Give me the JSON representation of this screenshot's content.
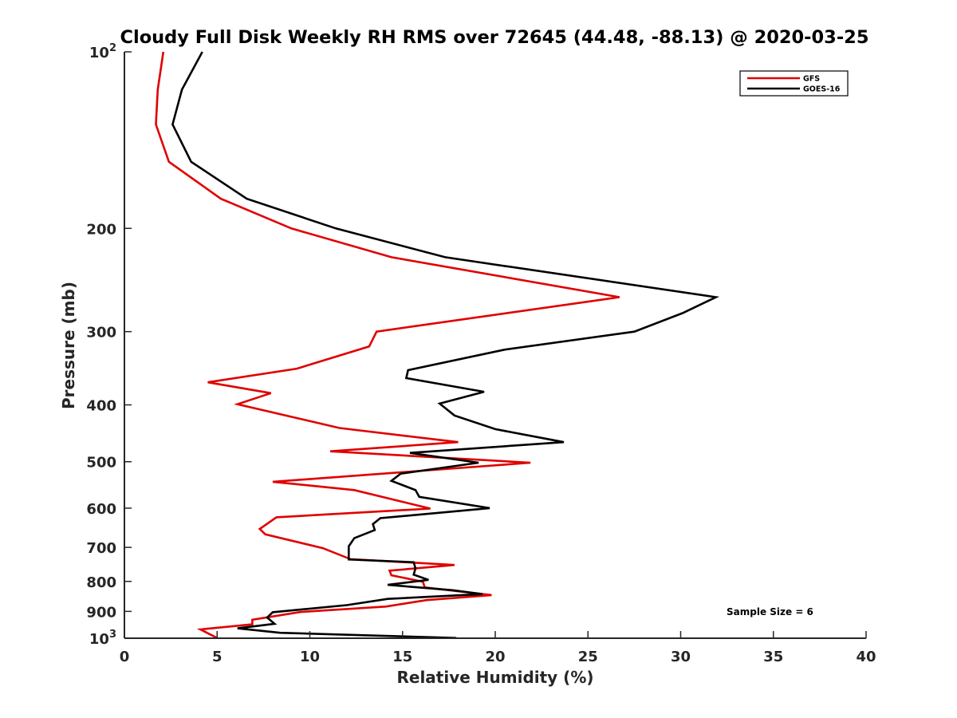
{
  "chart_data": {
    "type": "line",
    "title": "Cloudy Full Disk Weekly RH RMS over 72645 (44.48, -88.13) @ 2020-03-25",
    "xlabel": "Relative Humidity (%)",
    "ylabel": "Pressure (mb)",
    "xlim": [
      0,
      40
    ],
    "ylim": [
      100,
      1000
    ],
    "y_scale": "log",
    "y_reversed": true,
    "grid": false,
    "legend_position": "top-right",
    "note": "Sample Size = 6",
    "x_ticks": [
      {
        "value": 0,
        "label": "0"
      },
      {
        "value": 5,
        "label": "5"
      },
      {
        "value": 10,
        "label": "10"
      },
      {
        "value": 15,
        "label": "15"
      },
      {
        "value": 20,
        "label": "20"
      },
      {
        "value": 25,
        "label": "25"
      },
      {
        "value": 30,
        "label": "30"
      },
      {
        "value": 35,
        "label": "35"
      },
      {
        "value": 40,
        "label": "40"
      }
    ],
    "y_ticks": [
      {
        "value": 100,
        "base": "10",
        "exp": "2"
      },
      {
        "value": 200,
        "label": "200"
      },
      {
        "value": 300,
        "label": "300"
      },
      {
        "value": 400,
        "label": "400"
      },
      {
        "value": 500,
        "label": "500"
      },
      {
        "value": 600,
        "label": "600"
      },
      {
        "value": 700,
        "label": "700"
      },
      {
        "value": 800,
        "label": "800"
      },
      {
        "value": 900,
        "label": "900"
      },
      {
        "value": 1000,
        "base": "10",
        "exp": "3"
      }
    ],
    "series": [
      {
        "name": "GFS",
        "color": "#e00000",
        "points": [
          [
            2.1,
            100
          ],
          [
            1.8,
            116
          ],
          [
            1.7,
            133
          ],
          [
            2.4,
            154
          ],
          [
            5.2,
            178
          ],
          [
            9.0,
            200
          ],
          [
            14.4,
            224
          ],
          [
            26.7,
            262
          ],
          [
            13.6,
            300
          ],
          [
            13.2,
            318
          ],
          [
            9.3,
            347
          ],
          [
            4.5,
            366
          ],
          [
            7.9,
            382
          ],
          [
            6.1,
            399
          ],
          [
            11.6,
            438
          ],
          [
            18.0,
            463
          ],
          [
            11.1,
            480
          ],
          [
            21.9,
            502
          ],
          [
            8.0,
            541
          ],
          [
            12.4,
            559
          ],
          [
            16.5,
            601
          ],
          [
            8.2,
            622
          ],
          [
            7.3,
            651
          ],
          [
            7.6,
            665
          ],
          [
            10.7,
            702
          ],
          [
            12.2,
            733
          ],
          [
            17.8,
            750
          ],
          [
            14.3,
            767
          ],
          [
            14.4,
            781
          ],
          [
            16.1,
            801
          ],
          [
            16.2,
            819
          ],
          [
            19.8,
            844
          ],
          [
            16.3,
            861
          ],
          [
            14.1,
            883
          ],
          [
            9.5,
            902
          ],
          [
            6.9,
            930
          ],
          [
            6.9,
            947
          ],
          [
            4.1,
            966
          ],
          [
            5.0,
            999
          ]
        ]
      },
      {
        "name": "GOES-16",
        "color": "#000000",
        "points": [
          [
            4.2,
            100
          ],
          [
            3.1,
            116
          ],
          [
            2.6,
            133
          ],
          [
            3.6,
            154
          ],
          [
            6.6,
            178
          ],
          [
            11.4,
            200
          ],
          [
            17.3,
            224
          ],
          [
            31.9,
            262
          ],
          [
            30.1,
            279
          ],
          [
            27.5,
            300
          ],
          [
            20.5,
            322
          ],
          [
            15.3,
            349
          ],
          [
            15.2,
            360
          ],
          [
            19.4,
            380
          ],
          [
            17.0,
            398
          ],
          [
            17.8,
            417
          ],
          [
            20.0,
            440
          ],
          [
            23.7,
            463
          ],
          [
            15.4,
            483
          ],
          [
            19.1,
            502
          ],
          [
            14.9,
            524
          ],
          [
            14.4,
            539
          ],
          [
            15.7,
            559
          ],
          [
            15.9,
            574
          ],
          [
            19.7,
            600
          ],
          [
            13.8,
            624
          ],
          [
            13.4,
            639
          ],
          [
            13.5,
            654
          ],
          [
            12.4,
            675
          ],
          [
            12.1,
            697
          ],
          [
            12.1,
            734
          ],
          [
            15.6,
            742
          ],
          [
            15.7,
            760
          ],
          [
            15.6,
            779
          ],
          [
            16.4,
            795
          ],
          [
            14.2,
            811
          ],
          [
            17.7,
            828
          ],
          [
            19.3,
            841
          ],
          [
            14.2,
            857
          ],
          [
            12.0,
            878
          ],
          [
            8.0,
            903
          ],
          [
            7.7,
            922
          ],
          [
            8.1,
            945
          ],
          [
            6.1,
            962
          ],
          [
            8.4,
            979
          ],
          [
            17.9,
            999
          ]
        ]
      }
    ]
  }
}
